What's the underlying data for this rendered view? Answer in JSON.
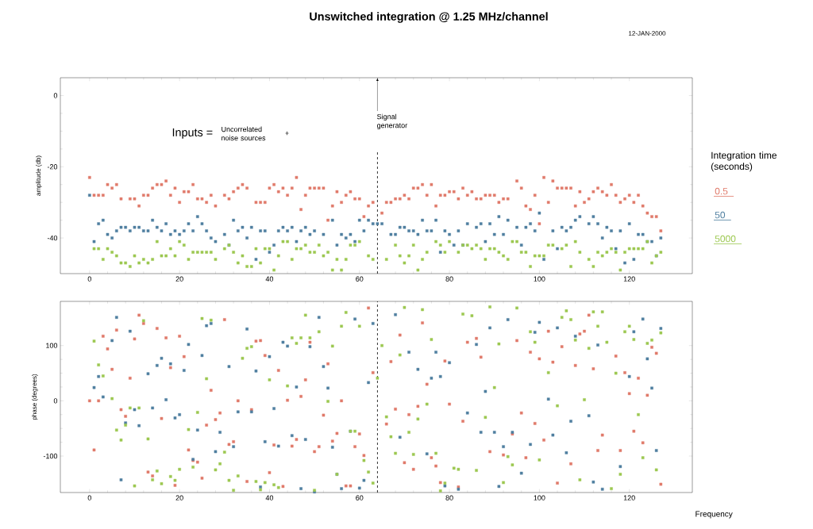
{
  "chart_data": [
    {
      "type": "scatter",
      "title": "Unswitched integration @ 1.25 MHz/channel",
      "subtitle": "12-JAN-2000",
      "ylabel": "amplitude (db)",
      "legend_title": "Integration time (seconds)",
      "legend": "right",
      "marker": "square",
      "xlim": [
        -6.5,
        134
      ],
      "ylim": [
        -50,
        5
      ],
      "xticks": [
        0,
        20,
        40,
        60,
        80,
        100,
        120
      ],
      "yticks": [
        -40,
        -20,
        0
      ],
      "annotations": [
        "Inputs =",
        "Uncorrelated noise sources",
        "+"
      ],
      "ref_lines": [
        {
          "axis": "x",
          "value": 64,
          "label": "Signal generator",
          "line_style": "dashed",
          "color": "#000000"
        }
      ],
      "series": [
        {
          "name": "0.5",
          "color": "#e07a6a",
          "x": [
            0,
            1,
            2,
            3,
            4,
            5,
            6,
            7,
            9,
            10,
            11,
            12,
            13,
            14,
            15,
            16,
            17,
            18,
            19,
            20,
            21,
            22,
            23,
            24,
            25,
            26,
            27,
            28,
            30,
            31,
            32,
            33,
            34,
            35,
            37,
            38,
            39,
            40,
            41,
            42,
            43,
            44,
            45,
            46,
            47,
            48,
            49,
            50,
            51,
            52,
            53,
            54,
            55,
            56,
            57,
            58,
            59,
            60,
            61,
            62,
            63,
            65,
            66,
            67,
            68,
            69,
            70,
            71,
            72,
            73,
            74,
            75,
            76,
            77,
            78,
            79,
            80,
            81,
            82,
            83,
            84,
            85,
            86,
            87,
            88,
            89,
            90,
            91,
            92,
            93,
            95,
            96,
            97,
            98,
            99,
            100,
            101,
            102,
            103,
            104,
            105,
            106,
            107,
            108,
            109,
            110,
            111,
            112,
            113,
            114,
            115,
            116,
            117,
            118,
            119,
            120,
            121,
            122,
            123,
            124,
            125,
            126,
            127
          ],
          "values": [
            -23,
            -28,
            -28,
            -28,
            -25,
            -26,
            -25,
            -29,
            -29,
            -29,
            -31,
            -28,
            -28,
            -26,
            -25,
            -25,
            -24,
            -28,
            -26,
            -30,
            -27,
            -27,
            -25,
            -29,
            -29,
            -30,
            -28,
            -31,
            -28,
            -29,
            -27,
            -26,
            -25,
            -26,
            -30,
            -30,
            -30,
            -26,
            -25,
            -27,
            -26,
            -28,
            -26,
            -23,
            -32,
            -28,
            -26,
            -26,
            -26,
            -26,
            -35,
            -31,
            -27,
            -30,
            -28,
            -27,
            -29,
            -29,
            -34,
            -31,
            -30,
            -33,
            -30,
            -30,
            -29,
            -29,
            -28,
            -29,
            -26,
            -26,
            -25,
            -28,
            -25,
            -31,
            -28,
            -28,
            -27,
            -27,
            -29,
            -26,
            -28,
            -27,
            -29,
            -29,
            -28,
            -28,
            -28,
            -30,
            -29,
            -29,
            -24,
            -26,
            -31,
            -32,
            -28,
            -36,
            -23,
            -30,
            -24,
            -26,
            -26,
            -26,
            -26,
            -31,
            -27,
            -30,
            -29,
            -27,
            -26,
            -27,
            -28,
            -25,
            -28,
            -30,
            -29,
            -28,
            -30,
            -28,
            -31,
            -33,
            -34,
            -34,
            -38
          ]
        },
        {
          "name": "50",
          "color": "#4f7fa0",
          "x": [
            0,
            1,
            2,
            3,
            4,
            5,
            6,
            7,
            8,
            9,
            10,
            11,
            12,
            13,
            14,
            15,
            16,
            17,
            18,
            19,
            20,
            21,
            22,
            23,
            24,
            25,
            26,
            27,
            28,
            30,
            31,
            32,
            33,
            34,
            35,
            36,
            37,
            38,
            39,
            40,
            41,
            42,
            43,
            44,
            45,
            46,
            47,
            48,
            49,
            50,
            52,
            54,
            55,
            56,
            57,
            58,
            59,
            60,
            61,
            62,
            63,
            64,
            65,
            67,
            68,
            69,
            70,
            71,
            72,
            73,
            74,
            75,
            76,
            77,
            78,
            79,
            80,
            81,
            82,
            83,
            84,
            86,
            87,
            88,
            89,
            90,
            91,
            92,
            93,
            95,
            96,
            97,
            98,
            99,
            100,
            101,
            103,
            104,
            105,
            106,
            107,
            108,
            109,
            111,
            112,
            113,
            114,
            115,
            116,
            117,
            118,
            119,
            120,
            121,
            122,
            123,
            124,
            125,
            126,
            127
          ],
          "values": [
            -28,
            -41,
            -36,
            -35,
            -39,
            -40,
            -38,
            -37,
            -37,
            -38,
            -37,
            -37,
            -38,
            -38,
            -35,
            -37,
            -38,
            -36,
            -39,
            -38,
            -39,
            -38,
            -36,
            -38,
            -34,
            -36,
            -38,
            -40,
            -41,
            -39,
            -42,
            -35,
            -38,
            -37,
            -40,
            -37,
            -46,
            -38,
            -38,
            -44,
            -42,
            -38,
            -37,
            -38,
            -37,
            -41,
            -38,
            -37,
            -39,
            -38,
            -39,
            -35,
            -42,
            -39,
            -40,
            -39,
            -41,
            -35,
            -38,
            -35,
            -36,
            -36,
            -36,
            -39,
            -39,
            -37,
            -37,
            -38,
            -38,
            -39,
            -35,
            -38,
            -38,
            -35,
            -44,
            -38,
            -39,
            -42,
            -38,
            -42,
            -36,
            -37,
            -36,
            -41,
            -36,
            -39,
            -34,
            -39,
            -35,
            -37,
            -42,
            -37,
            -36,
            -38,
            -33,
            -46,
            -38,
            -43,
            -37,
            -38,
            -37,
            -35,
            -34,
            -36,
            -34,
            -36,
            -40,
            -37,
            -38,
            -43,
            -38,
            -47,
            -36,
            -46,
            -39,
            -39,
            -41,
            -41,
            -45,
            -40
          ]
        },
        {
          "name": "5000",
          "color": "#9cc850",
          "x": [
            1,
            2,
            3,
            4,
            5,
            6,
            7,
            8,
            9,
            10,
            11,
            12,
            13,
            14,
            15,
            16,
            17,
            18,
            19,
            20,
            21,
            22,
            23,
            24,
            25,
            26,
            27,
            28,
            30,
            31,
            32,
            33,
            34,
            35,
            36,
            37,
            38,
            39,
            40,
            41,
            42,
            43,
            44,
            45,
            46,
            47,
            48,
            49,
            50,
            51,
            52,
            53,
            54,
            55,
            56,
            57,
            58,
            59,
            60,
            62,
            63,
            66,
            68,
            69,
            70,
            71,
            72,
            73,
            74,
            75,
            77,
            78,
            79,
            80,
            82,
            83,
            84,
            85,
            86,
            87,
            88,
            89,
            90,
            91,
            92,
            93,
            94,
            95,
            96,
            97,
            98,
            99,
            100,
            101,
            102,
            103,
            105,
            106,
            107,
            108,
            109,
            111,
            112,
            113,
            114,
            115,
            116,
            117,
            118,
            119,
            120,
            121,
            122,
            123,
            124,
            125,
            126,
            127
          ],
          "values": [
            -43,
            -43,
            -46,
            -43,
            -44,
            -45,
            -47,
            -47,
            -48,
            -45,
            -47,
            -46,
            -47,
            -46,
            -41,
            -45,
            -45,
            -43,
            -45,
            -41,
            -42,
            -46,
            -44,
            -44,
            -44,
            -44,
            -44,
            -46,
            -43,
            -42,
            -44,
            -47,
            -45,
            -48,
            -48,
            -43,
            -47,
            -43,
            -43,
            -49,
            -45,
            -41,
            -41,
            -46,
            -43,
            -43,
            -42,
            -44,
            -44,
            -42,
            -45,
            -44,
            -49,
            -46,
            -49,
            -46,
            -42,
            -42,
            -41,
            -45,
            -46,
            -46,
            -42,
            -45,
            -47,
            -45,
            -42,
            -49,
            -46,
            -44,
            -41,
            -42,
            -44,
            -41,
            -44,
            -42,
            -42,
            -43,
            -42,
            -43,
            -46,
            -43,
            -43,
            -44,
            -45,
            -46,
            -41,
            -41,
            -44,
            -44,
            -48,
            -45,
            -45,
            -45,
            -42,
            -42,
            -43,
            -42,
            -48,
            -41,
            -44,
            -46,
            -48,
            -44,
            -45,
            -44,
            -43,
            -44,
            -49,
            -44,
            -43,
            -43,
            -43,
            -43,
            -41,
            -47,
            -45,
            -44
          ]
        }
      ]
    },
    {
      "type": "scatter",
      "xlabel": "Frequency",
      "ylabel": "phase (degrees)",
      "marker": "square",
      "xlim": [
        -6.5,
        134
      ],
      "ylim": [
        -166,
        180
      ],
      "xticks": [
        0,
        20,
        40,
        60,
        80,
        100,
        120
      ],
      "yticks": [
        -100,
        0,
        100
      ],
      "ref_lines": [
        {
          "axis": "x",
          "value": 64,
          "line_style": "dashed",
          "color": "#000000"
        }
      ],
      "series": [
        {
          "color": "#e07a6a",
          "x": [
            0,
            1,
            2,
            3,
            4,
            5,
            6,
            7,
            8,
            9,
            10,
            11,
            12,
            13,
            14,
            15,
            16,
            17,
            18,
            19,
            20,
            21,
            22,
            23,
            24,
            25,
            26,
            27,
            28,
            29,
            30,
            31,
            32,
            33,
            35,
            36,
            37,
            38,
            39,
            40,
            41,
            42,
            43,
            44,
            45,
            46,
            47,
            48,
            49,
            50,
            51,
            52,
            53,
            54,
            55,
            56,
            57,
            58,
            59,
            60,
            61,
            62,
            63,
            66,
            67,
            68,
            69,
            70,
            71,
            72,
            73,
            74,
            75,
            76,
            77,
            78,
            79,
            80,
            82,
            83,
            84,
            86,
            87,
            89,
            92,
            94,
            95,
            96,
            97,
            98,
            99,
            100,
            101,
            102,
            103,
            104,
            105,
            107,
            108,
            109,
            110,
            111,
            112,
            113,
            114,
            117,
            118,
            119,
            120,
            121,
            122,
            123,
            124,
            125,
            126,
            127
          ],
          "values": [
            0,
            -89,
            0,
            117,
            94,
            57,
            128,
            -16,
            -28,
            41,
            112,
            155,
            140,
            -129,
            -136,
            131,
            -32,
            114,
            60,
            -153,
            117,
            80,
            -89,
            -108,
            -111,
            -140,
            -44,
            19,
            -34,
            -22,
            147,
            -79,
            -74,
            0,
            -146,
            -16,
            108,
            109,
            82,
            -130,
            -80,
            55,
            -155,
            1,
            -82,
            -70,
            8,
            38,
            106,
            -92,
            -83,
            -26,
            67,
            -73,
            -59,
            0,
            -154,
            -154,
            -83,
            -60,
            -99,
            168,
            51,
            -42,
            71,
            -15,
            119,
            -112,
            -25,
            -124,
            -10,
            141,
            30,
            -103,
            -118,
            -148,
            72,
            -6,
            -156,
            -37,
            106,
            113,
            79,
            -92,
            -98,
            -60,
            109,
            -22,
            -103,
            88,
            -41,
            76,
            -71,
            126,
            70,
            -149,
            98,
            -114,
            64,
            121,
            126,
            155,
            58,
            -90,
            -62,
            81,
            -90,
            51,
            13,
            -55,
            41,
            -76,
            10,
            97,
            86,
            -151
          ]
        },
        {
          "color": "#4f7fa0",
          "x": [
            1,
            2,
            3,
            5,
            6,
            7,
            8,
            9,
            10,
            11,
            13,
            14,
            15,
            16,
            17,
            18,
            19,
            20,
            21,
            22,
            23,
            24,
            25,
            26,
            27,
            28,
            29,
            31,
            32,
            33,
            35,
            36,
            37,
            38,
            39,
            40,
            41,
            42,
            43,
            44,
            45,
            46,
            47,
            48,
            49,
            50,
            51,
            52,
            53,
            54,
            55,
            56,
            58,
            59,
            60,
            61,
            62,
            63,
            68,
            69,
            71,
            73,
            75,
            76,
            77,
            78,
            79,
            80,
            82,
            84,
            86,
            87,
            88,
            89,
            90,
            91,
            92,
            93,
            94,
            96,
            98,
            99,
            100,
            102,
            103,
            104,
            106,
            107,
            108,
            111,
            112,
            113,
            114,
            118,
            120,
            121,
            123,
            124,
            125,
            126,
            127
          ],
          "values": [
            24,
            44,
            7,
            109,
            151,
            -143,
            -40,
            126,
            -16,
            -45,
            49,
            -13,
            64,
            77,
            2,
            67,
            -31,
            -25,
            55,
            102,
            -106,
            -53,
            82,
            136,
            140,
            -92,
            -57,
            62,
            -83,
            -20,
            130,
            -20,
            54,
            -156,
            -74,
            80,
            -14,
            -82,
            106,
            99,
            -63,
            25,
            -159,
            -70,
            98,
            -165,
            151,
            62,
            23,
            -84,
            -133,
            -159,
            -55,
            148,
            -158,
            -144,
            33,
            140,
            156,
            -66,
            88,
            57,
            -96,
            41,
            88,
            44,
            -154,
            69,
            -160,
            -22,
            102,
            -57,
            17,
            132,
            -57,
            -155,
            -83,
            147,
            -57,
            -131,
            -79,
            124,
            142,
            3,
            -62,
            132,
            -94,
            -37,
            117,
            -27,
            -147,
            101,
            -160,
            -119,
            44,
            125,
            148,
            76,
            23,
            -90,
            131
          ]
        },
        {
          "color": "#9cc850",
          "x": [
            1,
            2,
            3,
            5,
            6,
            7,
            8,
            9,
            10,
            11,
            12,
            13,
            14,
            15,
            16,
            18,
            19,
            20,
            22,
            23,
            24,
            25,
            26,
            27,
            28,
            29,
            30,
            31,
            32,
            33,
            34,
            35,
            36,
            37,
            38,
            39,
            40,
            41,
            42,
            44,
            45,
            46,
            47,
            48,
            49,
            50,
            51,
            53,
            54,
            55,
            56,
            57,
            58,
            59,
            60,
            61,
            62,
            63,
            64,
            65,
            66,
            67,
            68,
            69,
            70,
            71,
            72,
            73,
            74,
            75,
            76,
            77,
            78,
            79,
            81,
            82,
            83,
            85,
            86,
            88,
            89,
            90,
            91,
            92,
            93,
            94,
            95,
            98,
            99,
            100,
            102,
            104,
            105,
            106,
            107,
            108,
            109,
            110,
            111,
            112,
            113,
            114,
            115,
            116,
            117,
            118,
            119,
            120,
            121,
            122,
            123,
            124,
            125,
            126,
            127
          ],
          "values": [
            108,
            65,
            45,
            4,
            -53,
            -71,
            -44,
            -13,
            -154,
            -13,
            145,
            -69,
            -143,
            -127,
            -150,
            -137,
            -144,
            -124,
            -52,
            -120,
            -21,
            149,
            40,
            146,
            -125,
            -114,
            -93,
            -144,
            -162,
            -136,
            77,
            95,
            98,
            -146,
            -161,
            -148,
            38,
            -152,
            -157,
            27,
            114,
            104,
            114,
            155,
            114,
            -162,
            125,
            -1,
            99,
            -133,
            135,
            160,
            -55,
            -55,
            135,
            -108,
            -129,
            -149,
            41,
            100,
            -29,
            -65,
            -95,
            83,
            169,
            -57,
            -97,
            -33,
            165,
            -6,
            111,
            -95,
            -163,
            -149,
            -122,
            -124,
            157,
            154,
            -126,
            -30,
            170,
            24,
            103,
            -148,
            -101,
            -116,
            168,
            125,
            106,
            -107,
            51,
            -9,
            151,
            163,
            147,
            110,
            -143,
            2,
            95,
            161,
            135,
            161,
            106,
            -159,
            50,
            -133,
            125,
            135,
            111,
            -25,
            -103,
            104,
            110,
            -125,
            123
          ]
        }
      ]
    }
  ]
}
